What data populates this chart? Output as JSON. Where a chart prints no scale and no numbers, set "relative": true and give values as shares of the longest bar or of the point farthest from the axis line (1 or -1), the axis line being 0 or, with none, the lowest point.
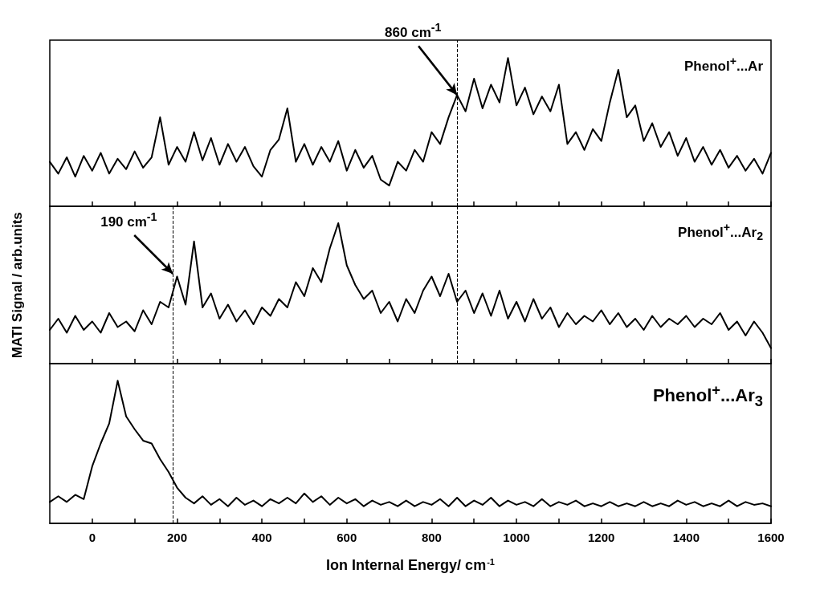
{
  "chart_data": [
    {
      "type": "line",
      "relative": true,
      "xlim": [
        -100,
        1600
      ],
      "xticks": [
        0,
        {
          "value": 100,
          "label": null
        },
        200,
        {
          "value": 300,
          "label": null
        },
        400,
        {
          "value": 500,
          "label": null
        },
        600,
        {
          "value": 700,
          "label": null
        },
        800,
        {
          "value": 900,
          "label": null
        },
        1000,
        {
          "value": 1100,
          "label": null
        },
        1200,
        {
          "value": 1300,
          "label": null
        },
        1400,
        {
          "value": 1500,
          "label": null
        },
        1600
      ],
      "tick_labels": false,
      "marker": "none",
      "line_style": "solid",
      "x": [
        -100,
        -80,
        -60,
        -40,
        -20,
        0,
        20,
        40,
        60,
        80,
        100,
        120,
        140,
        160,
        180,
        200,
        220,
        240,
        260,
        280,
        300,
        320,
        340,
        360,
        380,
        400,
        420,
        440,
        460,
        480,
        500,
        520,
        540,
        560,
        580,
        600,
        620,
        640,
        660,
        680,
        700,
        720,
        740,
        760,
        780,
        800,
        820,
        840,
        860,
        880,
        900,
        920,
        940,
        960,
        980,
        1000,
        1020,
        1040,
        1060,
        1080,
        1100,
        1120,
        1140,
        1160,
        1180,
        1200,
        1220,
        1240,
        1260,
        1280,
        1300,
        1320,
        1340,
        1360,
        1380,
        1400,
        1420,
        1440,
        1460,
        1480,
        1500,
        1520,
        1540,
        1560,
        1580,
        1600
      ],
      "series": [
        {
          "name": "Phenol$^{+}$...Ar",
          "color": "#000000",
          "values": [
            0.3,
            0.22,
            0.33,
            0.2,
            0.34,
            0.24,
            0.36,
            0.22,
            0.32,
            0.25,
            0.37,
            0.26,
            0.33,
            0.6,
            0.28,
            0.4,
            0.3,
            0.5,
            0.31,
            0.46,
            0.28,
            0.42,
            0.3,
            0.4,
            0.27,
            0.2,
            0.38,
            0.45,
            0.66,
            0.3,
            0.42,
            0.28,
            0.4,
            0.3,
            0.44,
            0.24,
            0.38,
            0.26,
            0.34,
            0.18,
            0.14,
            0.3,
            0.24,
            0.38,
            0.3,
            0.5,
            0.42,
            0.6,
            0.75,
            0.64,
            0.86,
            0.66,
            0.82,
            0.7,
            1.0,
            0.68,
            0.8,
            0.62,
            0.74,
            0.64,
            0.82,
            0.42,
            0.5,
            0.38,
            0.52,
            0.44,
            0.7,
            0.92,
            0.6,
            0.68,
            0.44,
            0.56,
            0.4,
            0.5,
            0.34,
            0.46,
            0.3,
            0.4,
            0.28,
            0.38,
            0.26,
            0.34,
            0.24,
            0.32,
            0.22,
            0.36
          ]
        }
      ],
      "ref_lines": [
        {
          "axis": "x",
          "value": 860,
          "color": "#000000",
          "line_style": "dashed"
        }
      ],
      "annotations": [
        {
          "text": "860 cm$^{-1}$",
          "x": 860,
          "y": 0.75
        }
      ]
    },
    {
      "type": "line",
      "relative": true,
      "xlim": [
        -100,
        1600
      ],
      "xticks": [
        0,
        {
          "value": 100,
          "label": null
        },
        200,
        {
          "value": 300,
          "label": null
        },
        400,
        {
          "value": 500,
          "label": null
        },
        600,
        {
          "value": 700,
          "label": null
        },
        800,
        {
          "value": 900,
          "label": null
        },
        1000,
        {
          "value": 1100,
          "label": null
        },
        1200,
        {
          "value": 1300,
          "label": null
        },
        1400,
        {
          "value": 1500,
          "label": null
        },
        1600
      ],
      "tick_labels": false,
      "marker": "none",
      "line_style": "solid",
      "ylabel": "MATI Signal / arb.units",
      "x": [
        -100,
        -80,
        -60,
        -40,
        -20,
        0,
        20,
        40,
        60,
        80,
        100,
        120,
        140,
        160,
        180,
        200,
        220,
        240,
        260,
        280,
        300,
        320,
        340,
        360,
        380,
        400,
        420,
        440,
        460,
        480,
        500,
        520,
        540,
        560,
        580,
        600,
        620,
        640,
        660,
        680,
        700,
        720,
        740,
        760,
        780,
        800,
        820,
        840,
        860,
        880,
        900,
        920,
        940,
        960,
        980,
        1000,
        1020,
        1040,
        1060,
        1080,
        1100,
        1120,
        1140,
        1160,
        1180,
        1200,
        1220,
        1240,
        1260,
        1280,
        1300,
        1320,
        1340,
        1360,
        1380,
        1400,
        1420,
        1440,
        1460,
        1480,
        1500,
        1520,
        1540,
        1560,
        1580,
        1600
      ],
      "series": [
        {
          "name": "Phenol$^{+}$...Ar$_{2}$",
          "color": "#000000",
          "values": [
            0.24,
            0.32,
            0.22,
            0.34,
            0.24,
            0.3,
            0.22,
            0.36,
            0.26,
            0.3,
            0.23,
            0.38,
            0.28,
            0.44,
            0.4,
            0.62,
            0.42,
            0.87,
            0.4,
            0.5,
            0.32,
            0.42,
            0.3,
            0.38,
            0.28,
            0.4,
            0.34,
            0.46,
            0.4,
            0.58,
            0.48,
            0.68,
            0.58,
            0.82,
            1.0,
            0.7,
            0.56,
            0.46,
            0.52,
            0.36,
            0.44,
            0.3,
            0.46,
            0.36,
            0.52,
            0.62,
            0.48,
            0.64,
            0.44,
            0.52,
            0.36,
            0.5,
            0.34,
            0.52,
            0.32,
            0.44,
            0.3,
            0.46,
            0.32,
            0.4,
            0.26,
            0.36,
            0.28,
            0.34,
            0.3,
            0.38,
            0.28,
            0.36,
            0.26,
            0.32,
            0.24,
            0.34,
            0.26,
            0.32,
            0.28,
            0.34,
            0.26,
            0.32,
            0.28,
            0.36,
            0.24,
            0.3,
            0.2,
            0.3,
            0.22,
            0.11
          ]
        }
      ],
      "ref_lines": [
        {
          "axis": "x",
          "value": 860,
          "color": "#000000",
          "line_style": "dashed"
        },
        {
          "axis": "x",
          "value": 190,
          "color": "#000000",
          "line_style": "dashed"
        }
      ],
      "annotations": [
        {
          "text": "190 cm$^{-1}$",
          "x": 190,
          "y": 0.64
        }
      ]
    },
    {
      "type": "line",
      "relative": true,
      "xlim": [
        -100,
        1600
      ],
      "xticks": [
        0,
        {
          "value": 100,
          "label": null
        },
        200,
        {
          "value": 300,
          "label": null
        },
        400,
        {
          "value": 500,
          "label": null
        },
        600,
        {
          "value": 700,
          "label": null
        },
        800,
        {
          "value": 900,
          "label": null
        },
        1000,
        {
          "value": 1100,
          "label": null
        },
        1200,
        {
          "value": 1300,
          "label": null
        },
        1400,
        {
          "value": 1500,
          "label": null
        },
        1600
      ],
      "tick_labels": "x",
      "marker": "none",
      "line_style": "solid",
      "xlabel": "Ion Internal Energy/ cm$^{-1}$",
      "x": [
        -100,
        -80,
        -60,
        -40,
        -20,
        0,
        20,
        40,
        60,
        80,
        100,
        120,
        140,
        160,
        180,
        200,
        220,
        240,
        260,
        280,
        300,
        320,
        340,
        360,
        380,
        400,
        420,
        440,
        460,
        480,
        500,
        520,
        540,
        560,
        580,
        600,
        620,
        640,
        660,
        680,
        700,
        720,
        740,
        760,
        780,
        800,
        820,
        840,
        860,
        880,
        900,
        920,
        940,
        960,
        980,
        1000,
        1020,
        1040,
        1060,
        1080,
        1100,
        1120,
        1140,
        1160,
        1180,
        1200,
        1220,
        1240,
        1260,
        1280,
        1300,
        1320,
        1340,
        1360,
        1380,
        1400,
        1420,
        1440,
        1460,
        1480,
        1500,
        1520,
        1540,
        1560,
        1580,
        1600
      ],
      "series": [
        {
          "name": "Phenol$^{+}$...Ar$_{3}$",
          "color": "#000000",
          "values": [
            0.15,
            0.19,
            0.15,
            0.2,
            0.17,
            0.4,
            0.56,
            0.7,
            1.0,
            0.75,
            0.66,
            0.58,
            0.56,
            0.45,
            0.36,
            0.25,
            0.18,
            0.14,
            0.19,
            0.13,
            0.17,
            0.12,
            0.18,
            0.13,
            0.16,
            0.12,
            0.17,
            0.14,
            0.18,
            0.14,
            0.21,
            0.15,
            0.19,
            0.13,
            0.18,
            0.14,
            0.17,
            0.12,
            0.16,
            0.13,
            0.15,
            0.12,
            0.16,
            0.12,
            0.15,
            0.13,
            0.17,
            0.12,
            0.18,
            0.12,
            0.16,
            0.13,
            0.18,
            0.12,
            0.16,
            0.13,
            0.15,
            0.12,
            0.17,
            0.12,
            0.15,
            0.13,
            0.16,
            0.12,
            0.14,
            0.12,
            0.15,
            0.12,
            0.14,
            0.12,
            0.15,
            0.12,
            0.14,
            0.12,
            0.16,
            0.13,
            0.15,
            0.12,
            0.14,
            0.12,
            0.16,
            0.12,
            0.15,
            0.13,
            0.14,
            0.12
          ]
        }
      ],
      "ref_lines": [
        {
          "axis": "x",
          "value": 190,
          "color": "#000000",
          "line_style": "dashed"
        }
      ]
    }
  ]
}
